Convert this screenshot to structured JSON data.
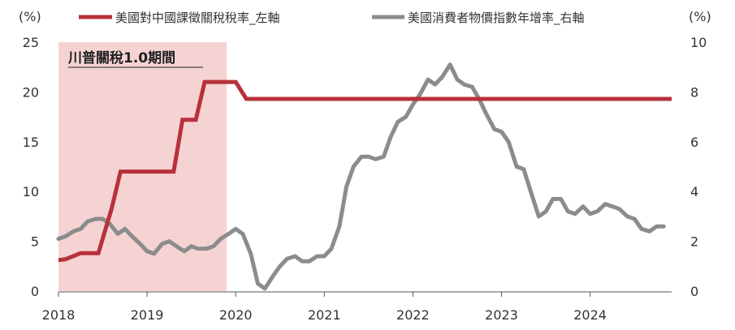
{
  "chart_data": {
    "type": "line",
    "title": "",
    "y_left_unit": "(%)",
    "y_right_unit": "(%)",
    "ylim_left": [
      0,
      25
    ],
    "ylim_right": [
      0,
      10
    ],
    "yticks_left": [
      "0",
      "5",
      "10",
      "15",
      "20",
      "25"
    ],
    "yticks_right": [
      "0",
      "2",
      "4",
      "6",
      "8",
      "10"
    ],
    "xticks": [
      "2018",
      "2019",
      "2020",
      "2021",
      "2022",
      "2023",
      "2024"
    ],
    "xlim": [
      2018.0,
      2024.92
    ],
    "grid": false,
    "legend_position": "top",
    "annotation": {
      "label": "川普關稅1.0期間",
      "x_start": 2018.0,
      "x_end": 2019.9,
      "color": "#f6d3d3"
    },
    "series": [
      {
        "name": "美國對中國課徵關稅稅率_左軸",
        "axis": "left",
        "color": "#b7313c",
        "points": [
          [
            2018.0,
            3.1
          ],
          [
            2018.08,
            3.2
          ],
          [
            2018.25,
            3.8
          ],
          [
            2018.45,
            3.8
          ],
          [
            2018.6,
            8.3
          ],
          [
            2018.7,
            12.0
          ],
          [
            2019.3,
            12.0
          ],
          [
            2019.4,
            17.2
          ],
          [
            2019.55,
            17.2
          ],
          [
            2019.65,
            21.0
          ],
          [
            2020.0,
            21.0
          ],
          [
            2020.12,
            19.3
          ],
          [
            2024.92,
            19.3
          ]
        ]
      },
      {
        "name": "美國消費者物價指數年增率_右軸",
        "axis": "right",
        "color": "#8c8c8c",
        "points": [
          [
            2018.0,
            2.1
          ],
          [
            2018.08,
            2.2
          ],
          [
            2018.17,
            2.4
          ],
          [
            2018.25,
            2.5
          ],
          [
            2018.33,
            2.8
          ],
          [
            2018.42,
            2.9
          ],
          [
            2018.5,
            2.9
          ],
          [
            2018.58,
            2.7
          ],
          [
            2018.67,
            2.3
          ],
          [
            2018.75,
            2.5
          ],
          [
            2018.83,
            2.2
          ],
          [
            2018.92,
            1.9
          ],
          [
            2019.0,
            1.6
          ],
          [
            2019.08,
            1.5
          ],
          [
            2019.17,
            1.9
          ],
          [
            2019.25,
            2.0
          ],
          [
            2019.33,
            1.8
          ],
          [
            2019.42,
            1.6
          ],
          [
            2019.5,
            1.8
          ],
          [
            2019.58,
            1.7
          ],
          [
            2019.67,
            1.7
          ],
          [
            2019.75,
            1.8
          ],
          [
            2019.83,
            2.1
          ],
          [
            2019.92,
            2.3
          ],
          [
            2020.0,
            2.5
          ],
          [
            2020.08,
            2.3
          ],
          [
            2020.17,
            1.5
          ],
          [
            2020.25,
            0.3
          ],
          [
            2020.33,
            0.1
          ],
          [
            2020.42,
            0.6
          ],
          [
            2020.5,
            1.0
          ],
          [
            2020.58,
            1.3
          ],
          [
            2020.67,
            1.4
          ],
          [
            2020.75,
            1.2
          ],
          [
            2020.83,
            1.2
          ],
          [
            2020.92,
            1.4
          ],
          [
            2021.0,
            1.4
          ],
          [
            2021.08,
            1.7
          ],
          [
            2021.17,
            2.6
          ],
          [
            2021.25,
            4.2
          ],
          [
            2021.33,
            5.0
          ],
          [
            2021.42,
            5.4
          ],
          [
            2021.5,
            5.4
          ],
          [
            2021.58,
            5.3
          ],
          [
            2021.67,
            5.4
          ],
          [
            2021.75,
            6.2
          ],
          [
            2021.83,
            6.8
          ],
          [
            2021.92,
            7.0
          ],
          [
            2022.0,
            7.5
          ],
          [
            2022.08,
            7.9
          ],
          [
            2022.17,
            8.5
          ],
          [
            2022.25,
            8.3
          ],
          [
            2022.33,
            8.6
          ],
          [
            2022.42,
            9.1
          ],
          [
            2022.5,
            8.5
          ],
          [
            2022.58,
            8.3
          ],
          [
            2022.67,
            8.2
          ],
          [
            2022.75,
            7.7
          ],
          [
            2022.83,
            7.1
          ],
          [
            2022.92,
            6.5
          ],
          [
            2023.0,
            6.4
          ],
          [
            2023.08,
            6.0
          ],
          [
            2023.17,
            5.0
          ],
          [
            2023.25,
            4.9
          ],
          [
            2023.33,
            4.0
          ],
          [
            2023.42,
            3.0
          ],
          [
            2023.5,
            3.2
          ],
          [
            2023.58,
            3.7
          ],
          [
            2023.67,
            3.7
          ],
          [
            2023.75,
            3.2
          ],
          [
            2023.83,
            3.1
          ],
          [
            2023.92,
            3.4
          ],
          [
            2024.0,
            3.1
          ],
          [
            2024.08,
            3.2
          ],
          [
            2024.17,
            3.5
          ],
          [
            2024.25,
            3.4
          ],
          [
            2024.33,
            3.3
          ],
          [
            2024.42,
            3.0
          ],
          [
            2024.5,
            2.9
          ],
          [
            2024.58,
            2.5
          ],
          [
            2024.67,
            2.4
          ],
          [
            2024.75,
            2.6
          ],
          [
            2024.83,
            2.6
          ]
        ]
      }
    ]
  }
}
